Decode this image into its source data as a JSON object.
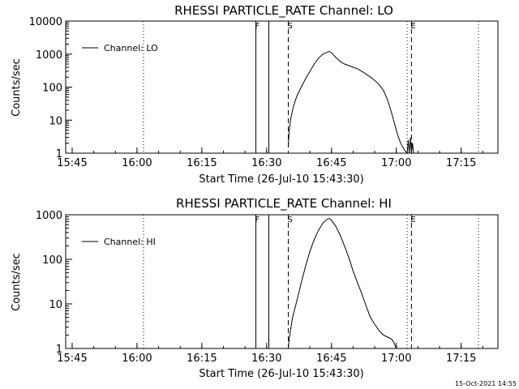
{
  "footer_timestamp": "15-Oct-2021 14:55",
  "chart_data": [
    {
      "type": "line",
      "title": "RHESSI PARTICLE_RATE Channel: LO",
      "xlabel": "Start Time (26-Jul-10 15:43:30)",
      "ylabel": "Counts/sec",
      "yscale": "log",
      "ylim": [
        1,
        10000
      ],
      "xlim": [
        "15:43:30",
        "17:23:30"
      ],
      "x_ticks": [
        "15:45",
        "16:00",
        "16:15",
        "16:30",
        "16:45",
        "17:00",
        "17:15"
      ],
      "y_ticks": [
        "1",
        "10",
        "100",
        "1000",
        "10000"
      ],
      "legend": "Channel: LO",
      "legend_position": "top-left",
      "markers": [
        {
          "time": "16:01:30",
          "style": "dotted"
        },
        {
          "time": "16:27:30",
          "style": "solid",
          "label": "F"
        },
        {
          "time": "16:30:30",
          "style": "solid"
        },
        {
          "time": "16:35:00",
          "style": "dashed",
          "label": "S"
        },
        {
          "time": "17:02:30",
          "style": "dotted"
        },
        {
          "time": "17:03:30",
          "style": "dashed",
          "label": "E"
        },
        {
          "time": "17:19:00",
          "style": "dotted"
        }
      ],
      "series": [
        {
          "name": "Channel: LO",
          "x": [
            "16:35:00",
            "16:35:10",
            "16:35:30",
            "16:36:00",
            "16:36:30",
            "16:37:00",
            "16:38:00",
            "16:39:00",
            "16:40:00",
            "16:41:00",
            "16:42:00",
            "16:43:00",
            "16:44:00",
            "16:44:30",
            "16:45:00",
            "16:46:00",
            "16:47:00",
            "16:48:00",
            "16:49:00",
            "16:50:00",
            "16:51:00",
            "16:52:00",
            "16:53:00",
            "16:54:00",
            "16:55:00",
            "16:56:00",
            "16:57:00",
            "16:58:00",
            "16:59:00",
            "17:00:00",
            "17:00:30",
            "17:01:00",
            "17:01:30",
            "17:02:00",
            "17:02:30",
            "17:02:45",
            "17:03:00",
            "17:03:15",
            "17:03:30",
            "17:03:45",
            "17:04:00"
          ],
          "values": [
            1.5,
            4,
            10,
            20,
            35,
            55,
            100,
            180,
            300,
            500,
            750,
            1000,
            1150,
            1200,
            1100,
            800,
            600,
            500,
            450,
            400,
            360,
            300,
            250,
            200,
            160,
            120,
            80,
            40,
            15,
            5,
            3,
            2,
            1.5,
            1.2,
            1,
            2.5,
            1,
            3,
            1,
            2,
            1
          ]
        }
      ]
    },
    {
      "type": "line",
      "title": "RHESSI PARTICLE_RATE Channel: HI",
      "xlabel": "Start Time (26-Jul-10 15:43:30)",
      "ylabel": "Counts/sec",
      "yscale": "log",
      "ylim": [
        1,
        1000
      ],
      "xlim": [
        "15:43:30",
        "17:23:30"
      ],
      "x_ticks": [
        "15:45",
        "16:00",
        "16:15",
        "16:30",
        "16:45",
        "17:00",
        "17:15"
      ],
      "y_ticks": [
        "1",
        "10",
        "100",
        "1000"
      ],
      "legend": "Channel: HI",
      "legend_position": "top-left",
      "markers": [
        {
          "time": "16:01:30",
          "style": "dotted"
        },
        {
          "time": "16:27:30",
          "style": "solid",
          "label": "F"
        },
        {
          "time": "16:30:30",
          "style": "solid"
        },
        {
          "time": "16:35:00",
          "style": "dashed",
          "label": "S"
        },
        {
          "time": "17:02:30",
          "style": "dotted"
        },
        {
          "time": "17:03:30",
          "style": "dashed",
          "label": "E"
        },
        {
          "time": "17:19:00",
          "style": "dotted"
        }
      ],
      "series": [
        {
          "name": "Channel: HI",
          "x": [
            "16:35:00",
            "16:35:20",
            "16:36:00",
            "16:37:00",
            "16:38:00",
            "16:39:00",
            "16:40:00",
            "16:41:00",
            "16:42:00",
            "16:43:00",
            "16:44:00",
            "16:44:30",
            "16:45:00",
            "16:46:00",
            "16:47:00",
            "16:48:00",
            "16:49:00",
            "16:50:00",
            "16:51:00",
            "16:52:00",
            "16:53:00",
            "16:54:00",
            "16:55:00",
            "16:56:00",
            "16:57:00",
            "16:58:00",
            "16:59:00",
            "16:59:30",
            "17:00:00"
          ],
          "values": [
            1,
            2,
            5,
            12,
            30,
            70,
            150,
            280,
            450,
            650,
            800,
            820,
            750,
            550,
            350,
            200,
            110,
            55,
            30,
            17,
            9,
            5,
            3.5,
            2.5,
            2,
            1.8,
            1.6,
            1.3,
            1
          ]
        }
      ]
    }
  ]
}
